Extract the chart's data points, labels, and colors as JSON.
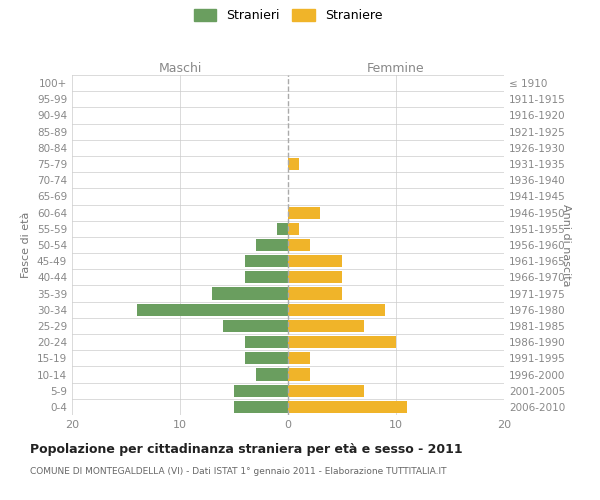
{
  "age_groups": [
    "0-4",
    "5-9",
    "10-14",
    "15-19",
    "20-24",
    "25-29",
    "30-34",
    "35-39",
    "40-44",
    "45-49",
    "50-54",
    "55-59",
    "60-64",
    "65-69",
    "70-74",
    "75-79",
    "80-84",
    "85-89",
    "90-94",
    "95-99",
    "100+"
  ],
  "birth_years": [
    "2006-2010",
    "2001-2005",
    "1996-2000",
    "1991-1995",
    "1986-1990",
    "1981-1985",
    "1976-1980",
    "1971-1975",
    "1966-1970",
    "1961-1965",
    "1956-1960",
    "1951-1955",
    "1946-1950",
    "1941-1945",
    "1936-1940",
    "1931-1935",
    "1926-1930",
    "1921-1925",
    "1916-1920",
    "1911-1915",
    "≤ 1910"
  ],
  "maschi": [
    5,
    5,
    3,
    4,
    4,
    6,
    14,
    7,
    4,
    4,
    3,
    1,
    0,
    0,
    0,
    0,
    0,
    0,
    0,
    0,
    0
  ],
  "femmine": [
    11,
    7,
    2,
    2,
    10,
    7,
    9,
    5,
    5,
    5,
    2,
    1,
    3,
    0,
    0,
    1,
    0,
    0,
    0,
    0,
    0
  ],
  "maschi_color": "#6a9e5f",
  "femmine_color": "#f0b429",
  "bar_height": 0.75,
  "xlim": 20,
  "title": "Popolazione per cittadinanza straniera per età e sesso - 2011",
  "subtitle": "COMUNE DI MONTEGALDELLA (VI) - Dati ISTAT 1° gennaio 2011 - Elaborazione TUTTITALIA.IT",
  "ylabel_left": "Fasce di età",
  "ylabel_right": "Anni di nascita",
  "xlabel_left": "Maschi",
  "xlabel_right": "Femmine",
  "legend_stranieri": "Stranieri",
  "legend_straniere": "Straniere",
  "bg_color": "#ffffff",
  "grid_color": "#cccccc",
  "axis_label_color": "#777777",
  "tick_color": "#888888",
  "dashed_line_color": "#aaaaaa"
}
